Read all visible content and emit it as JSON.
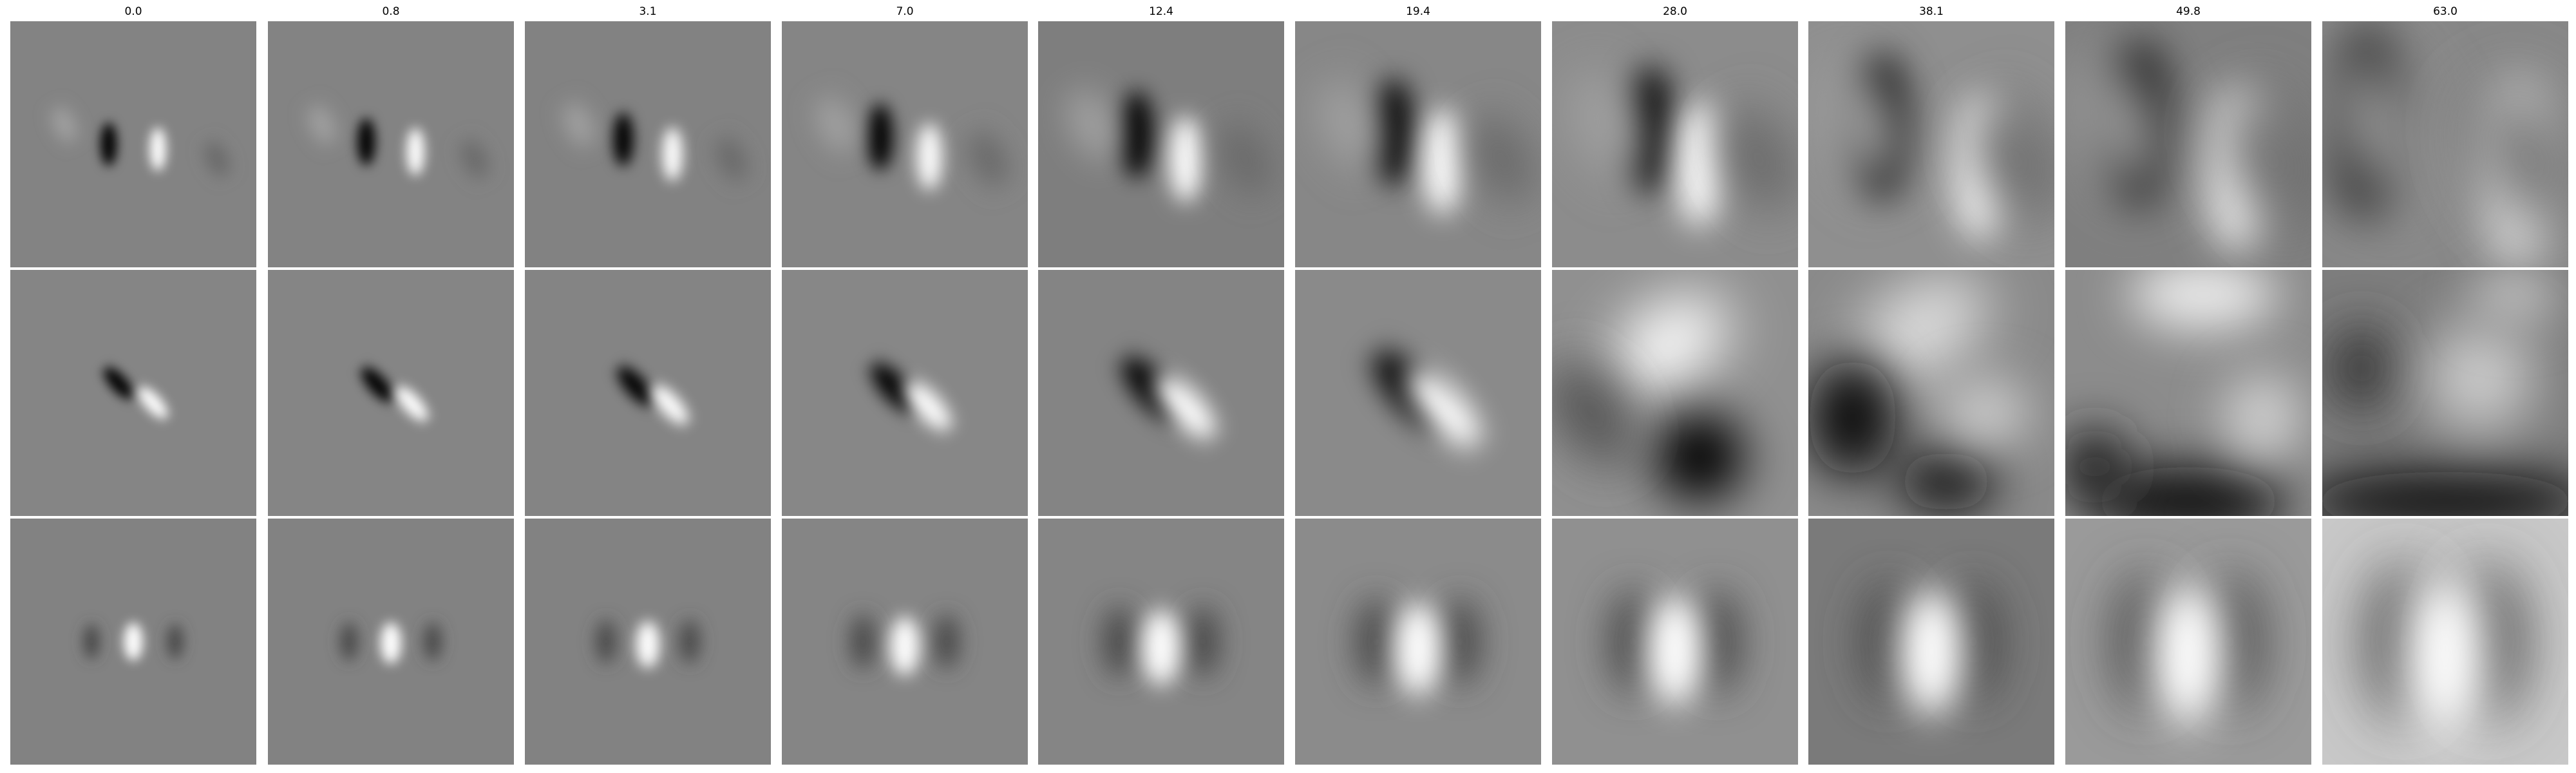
{
  "column_titles": [
    "0.0",
    "0.8",
    "3.1",
    "7.0",
    "12.4",
    "19.4",
    "28.0",
    "38.1",
    "49.8",
    "63.0"
  ],
  "rows": 3,
  "background": "#ffffff",
  "panel_mid_gray": "#808080"
}
